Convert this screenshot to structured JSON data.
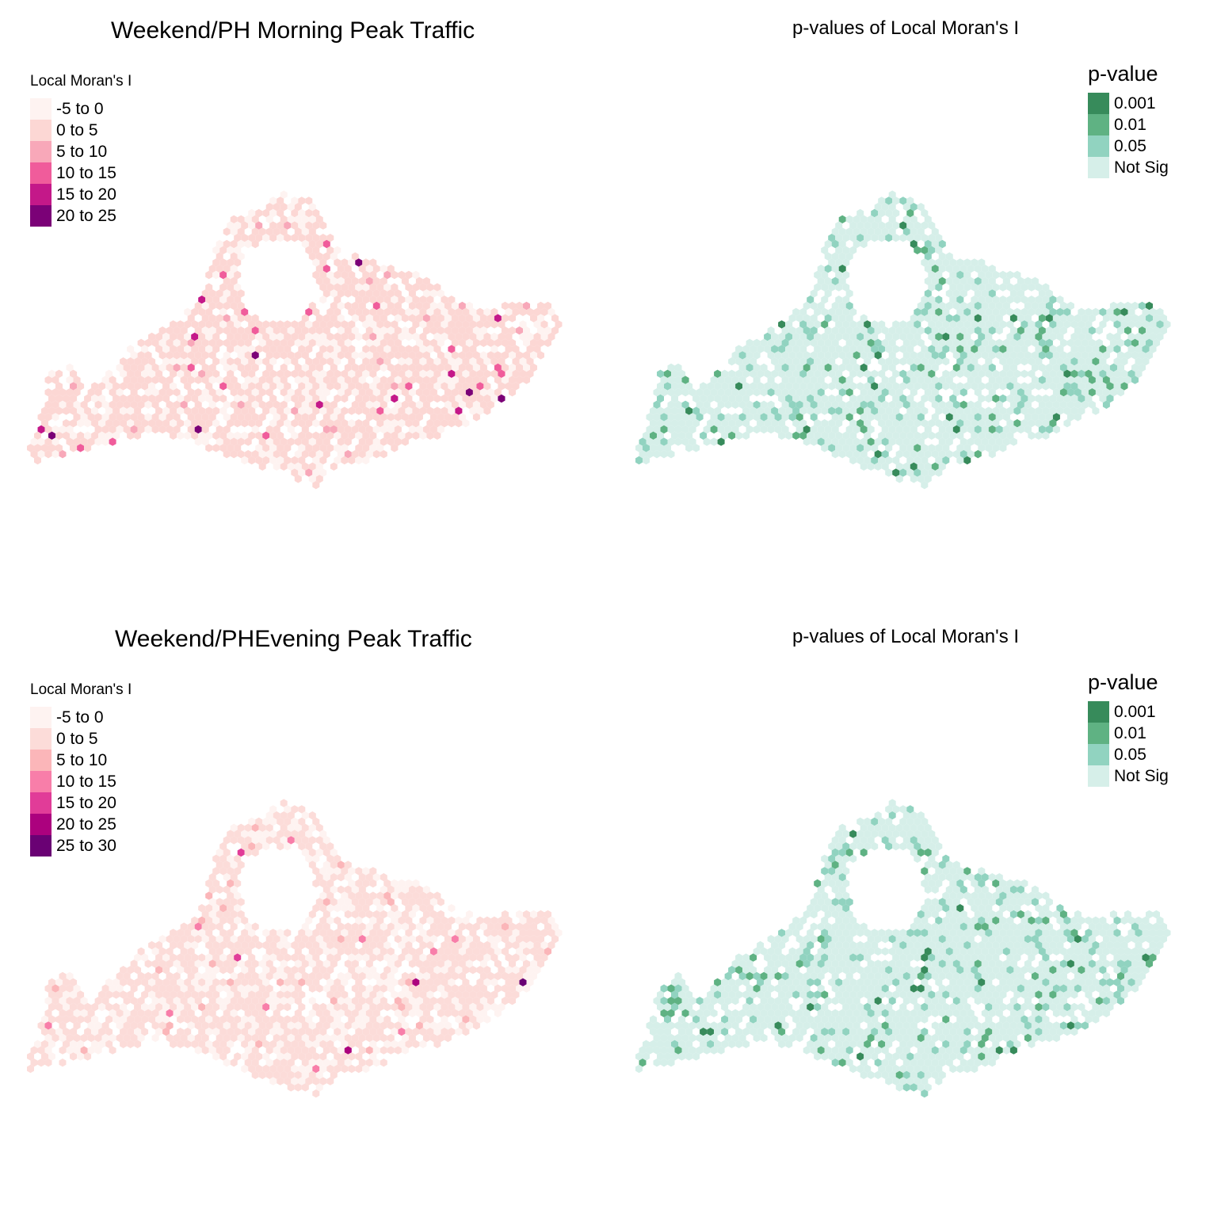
{
  "panels": [
    {
      "id": "weekend-morning-moran",
      "title": "Weekend/PH Morning Peak Traffic",
      "legend_title": "Local Moran's I",
      "legend": [
        {
          "label": "-5 to 0",
          "color": "#fef3f1"
        },
        {
          "label": "0 to 5",
          "color": "#fcd7d4"
        },
        {
          "label": "5 to 10",
          "color": "#f8a8b9"
        },
        {
          "label": "10 to 15",
          "color": "#f05c9b"
        },
        {
          "label": "15 to 20",
          "color": "#c41889"
        },
        {
          "label": "20 to 25",
          "color": "#7b0177"
        }
      ]
    },
    {
      "id": "weekend-morning-pvalue",
      "title": "p-values of Local Moran's I",
      "legend_title": "p-value",
      "legend": [
        {
          "label": "0.001",
          "color": "#378b5b"
        },
        {
          "label": "0.01",
          "color": "#5fb283"
        },
        {
          "label": "0.05",
          "color": "#91d3c0"
        },
        {
          "label": "Not Sig",
          "color": "#d6efe9"
        }
      ]
    },
    {
      "id": "weekend-evening-moran",
      "title": "Weekend/PHEvening Peak Traffic",
      "legend_title": "Local Moran's I",
      "legend": [
        {
          "label": "-5 to 0",
          "color": "#fef3f1"
        },
        {
          "label": "0 to 5",
          "color": "#fcdcd9"
        },
        {
          "label": "5 to 10",
          "color": "#fbb6b9"
        },
        {
          "label": "10 to 15",
          "color": "#f87ea9"
        },
        {
          "label": "15 to 20",
          "color": "#e13c98"
        },
        {
          "label": "20 to 25",
          "color": "#ac017e"
        },
        {
          "label": "25 to 30",
          "color": "#6a0174"
        }
      ]
    },
    {
      "id": "weekend-evening-pvalue",
      "title": "p-values of Local Moran's I",
      "legend_title": "p-value",
      "legend": [
        {
          "label": "0.001",
          "color": "#378b5b"
        },
        {
          "label": "0.01",
          "color": "#5fb283"
        },
        {
          "label": "0.05",
          "color": "#91d3c0"
        },
        {
          "label": "Not Sig",
          "color": "#d6efe9"
        }
      ]
    }
  ]
}
